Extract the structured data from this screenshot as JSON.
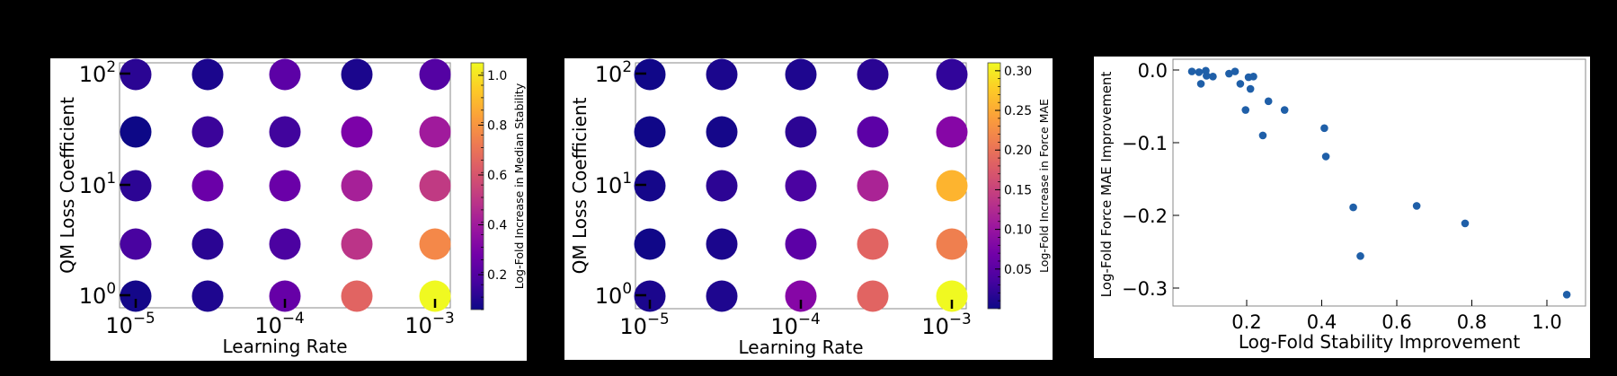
{
  "chart_data": [
    {
      "type": "scatter",
      "title": "",
      "xlabel": "Learning Rate",
      "ylabel": "QM Loss Coefficient",
      "xscale": "log",
      "yscale": "log",
      "x_ticks": [
        "10^-5",
        "10^-4",
        "10^-3"
      ],
      "y_ticks": [
        "10^0",
        "10^1",
        "10^2"
      ],
      "x_values": [
        1e-05,
        3e-05,
        0.0001,
        0.0003,
        0.001
      ],
      "y_values": [
        100,
        30,
        10,
        3,
        1
      ],
      "colorbar": {
        "label": "Log-Fold Increase in Median Stability",
        "cmap": "plasma",
        "range": [
          0.06,
          1.05
        ],
        "ticks": [
          "0.2",
          "0.4",
          "0.6",
          "0.8",
          "1.0"
        ]
      },
      "grid_values": [
        [
          0.12,
          0.08,
          0.3,
          0.09,
          0.27
        ],
        [
          0.06,
          0.18,
          0.2,
          0.38,
          0.47
        ],
        [
          0.13,
          0.33,
          0.33,
          0.47,
          0.6
        ],
        [
          0.22,
          0.12,
          0.23,
          0.58,
          0.82
        ],
        [
          0.08,
          0.1,
          0.32,
          0.72,
          1.05
        ]
      ],
      "grid_colors": [
        [
          "#2a0593",
          "#1b068d",
          "#5c01a6",
          "#1b068d",
          "#5402a3"
        ],
        [
          "#0d0887",
          "#3a049a",
          "#41049d",
          "#7c02a8",
          "#a01a9c"
        ],
        [
          "#2c0594",
          "#6a00a8",
          "#6a00a8",
          "#a62098",
          "#c03a83"
        ],
        [
          "#4903a0",
          "#2a0593",
          "#4c02a1",
          "#bb3488",
          "#f48849"
        ],
        [
          "#140789",
          "#1e068f",
          "#6600a7",
          "#e16462",
          "#f0f921"
        ]
      ]
    },
    {
      "type": "scatter",
      "title": "",
      "xlabel": "Learning Rate",
      "ylabel": "QM Loss Coefficient",
      "xscale": "log",
      "yscale": "log",
      "x_ticks": [
        "10^-5",
        "10^-4",
        "10^-3"
      ],
      "y_ticks": [
        "10^0",
        "10^1",
        "10^2"
      ],
      "x_values": [
        1e-05,
        3e-05,
        0.0001,
        0.0003,
        0.001
      ],
      "y_values": [
        100,
        30,
        10,
        3,
        1
      ],
      "colorbar": {
        "label": "Log-Fold Increase in Force MAE",
        "cmap": "plasma",
        "range": [
          0.0,
          0.31
        ],
        "ticks": [
          "0.05",
          "0.10",
          "0.15",
          "0.20",
          "0.25",
          "0.30"
        ]
      },
      "grid_values": [
        [
          0.005,
          0.01,
          0.012,
          0.02,
          0.03
        ],
        [
          0.005,
          0.008,
          0.022,
          0.06,
          0.1
        ],
        [
          0.008,
          0.02,
          0.05,
          0.125,
          0.265
        ],
        [
          0.005,
          0.01,
          0.06,
          0.19,
          0.215
        ],
        [
          0.01,
          0.012,
          0.1,
          0.19,
          0.31
        ]
      ],
      "grid_colors": [
        [
          "#100788",
          "#1b068d",
          "#1e068f",
          "#2a0593",
          "#31059a"
        ],
        [
          "#100788",
          "#15078a",
          "#2c0594",
          "#5c01a6",
          "#8606a6"
        ],
        [
          "#15078a",
          "#2c0594",
          "#4b03a1",
          "#aa2395",
          "#fdb42f"
        ],
        [
          "#100788",
          "#1b068d",
          "#5c01a6",
          "#e16462",
          "#ef7f4f"
        ],
        [
          "#1b068d",
          "#1e068f",
          "#8606a6",
          "#e16462",
          "#f0f921"
        ]
      ]
    },
    {
      "type": "scatter",
      "title": "",
      "xlabel": "Log-Fold Stability Improvement",
      "ylabel": "Log-Fold Force MAE Improvement",
      "x_ticks": [
        "0.2",
        "0.4",
        "0.6",
        "0.8",
        "1.0"
      ],
      "y_ticks": [
        "0.0",
        "−0.1",
        "−0.2",
        "−0.3"
      ],
      "xlim": [
        0.0,
        1.09
      ],
      "ylim": [
        -0.327,
        0.015
      ],
      "color": "#1f5fa8",
      "points": [
        [
          0.054,
          -0.002
        ],
        [
          0.073,
          -0.003
        ],
        [
          0.091,
          -0.001
        ],
        [
          0.093,
          -0.008
        ],
        [
          0.11,
          -0.009
        ],
        [
          0.078,
          -0.019
        ],
        [
          0.153,
          -0.005
        ],
        [
          0.169,
          -0.002
        ],
        [
          0.183,
          -0.019
        ],
        [
          0.205,
          -0.01
        ],
        [
          0.218,
          -0.009
        ],
        [
          0.21,
          -0.026
        ],
        [
          0.258,
          -0.043
        ],
        [
          0.197,
          -0.055
        ],
        [
          0.301,
          -0.055
        ],
        [
          0.243,
          -0.09
        ],
        [
          0.407,
          -0.08
        ],
        [
          0.411,
          -0.119
        ],
        [
          0.484,
          -0.189
        ],
        [
          0.653,
          -0.187
        ],
        [
          0.782,
          -0.211
        ],
        [
          0.503,
          -0.256
        ],
        [
          1.053,
          -0.309
        ]
      ]
    }
  ]
}
